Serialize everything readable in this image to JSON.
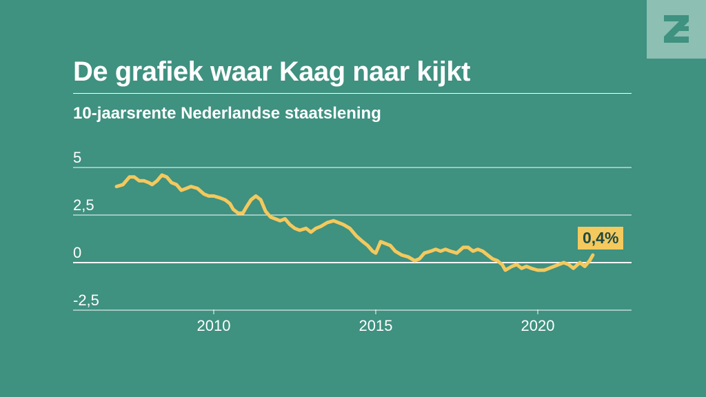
{
  "header": {
    "title": "De grafiek waar Kaag naar kijkt",
    "subtitle": "10-jaarsrente Nederlandse staatslening"
  },
  "logo": {
    "icon": "z-logo-icon"
  },
  "colors": {
    "background": "#3f9180",
    "line": "#f4c95d",
    "logo_bg": "#8dbfb3",
    "text": "#ffffff"
  },
  "chart_data": {
    "type": "line",
    "title": "De grafiek waar Kaag naar kijkt",
    "subtitle": "10-jaarsrente Nederlandse staatslening",
    "xlabel": "",
    "ylabel": "",
    "xlim": [
      2006,
      2023
    ],
    "ylim": [
      -2.5,
      5
    ],
    "y_ticks": [
      5,
      2.5,
      0,
      -2.5
    ],
    "y_tick_labels": [
      "5",
      "2,5",
      "0",
      "-2,5"
    ],
    "x_ticks": [
      2010,
      2015,
      2020
    ],
    "x_tick_labels": [
      "2010",
      "2015",
      "2020"
    ],
    "grid": "horizontal",
    "end_label": "0,4%",
    "series": [
      {
        "x": [
          2007.0,
          2007.2,
          2007.4,
          2007.55,
          2007.7,
          2007.85,
          2008.0,
          2008.1,
          2008.25,
          2008.4,
          2008.55,
          2008.7,
          2008.85,
          2009.0,
          2009.15,
          2009.3,
          2009.5,
          2009.7,
          2009.85,
          2010.0,
          2010.2,
          2010.35,
          2010.5,
          2010.6,
          2010.75,
          2010.9,
          2011.0,
          2011.15,
          2011.3,
          2011.45,
          2011.6,
          2011.75,
          2011.9,
          2012.05,
          2012.2,
          2012.35,
          2012.5,
          2012.65,
          2012.85,
          2013.0,
          2013.15,
          2013.3,
          2013.5,
          2013.7,
          2013.85,
          2014.0,
          2014.2,
          2014.4,
          2014.6,
          2014.75,
          2014.9,
          2015.0,
          2015.15,
          2015.3,
          2015.45,
          2015.6,
          2015.8,
          2016.0,
          2016.2,
          2016.35,
          2016.5,
          2016.7,
          2016.85,
          2017.0,
          2017.15,
          2017.3,
          2017.5,
          2017.7,
          2017.85,
          2018.0,
          2018.15,
          2018.3,
          2018.45,
          2018.6,
          2018.75,
          2018.9,
          2019.0,
          2019.2,
          2019.35,
          2019.5,
          2019.65,
          2019.8,
          2020.0,
          2020.2,
          2020.35,
          2020.5,
          2020.65,
          2020.8,
          2020.95,
          2021.1,
          2021.3,
          2021.45,
          2021.6,
          2021.7
        ],
        "y": [
          4.0,
          4.1,
          4.5,
          4.5,
          4.3,
          4.3,
          4.2,
          4.1,
          4.3,
          4.6,
          4.5,
          4.2,
          4.1,
          3.8,
          3.9,
          4.0,
          3.9,
          3.6,
          3.5,
          3.5,
          3.4,
          3.3,
          3.1,
          2.8,
          2.6,
          2.6,
          2.9,
          3.3,
          3.5,
          3.3,
          2.7,
          2.4,
          2.3,
          2.2,
          2.3,
          2.0,
          1.8,
          1.7,
          1.8,
          1.6,
          1.8,
          1.9,
          2.1,
          2.2,
          2.1,
          2.0,
          1.8,
          1.4,
          1.1,
          0.9,
          0.6,
          0.5,
          1.1,
          1.0,
          0.9,
          0.6,
          0.4,
          0.3,
          0.1,
          0.2,
          0.5,
          0.6,
          0.7,
          0.6,
          0.7,
          0.6,
          0.5,
          0.8,
          0.8,
          0.6,
          0.7,
          0.6,
          0.4,
          0.2,
          0.1,
          -0.1,
          -0.4,
          -0.2,
          -0.1,
          -0.3,
          -0.2,
          -0.3,
          -0.4,
          -0.4,
          -0.3,
          -0.2,
          -0.1,
          0.0,
          -0.1,
          -0.3,
          0.0,
          -0.2,
          0.1,
          0.4
        ]
      }
    ]
  }
}
